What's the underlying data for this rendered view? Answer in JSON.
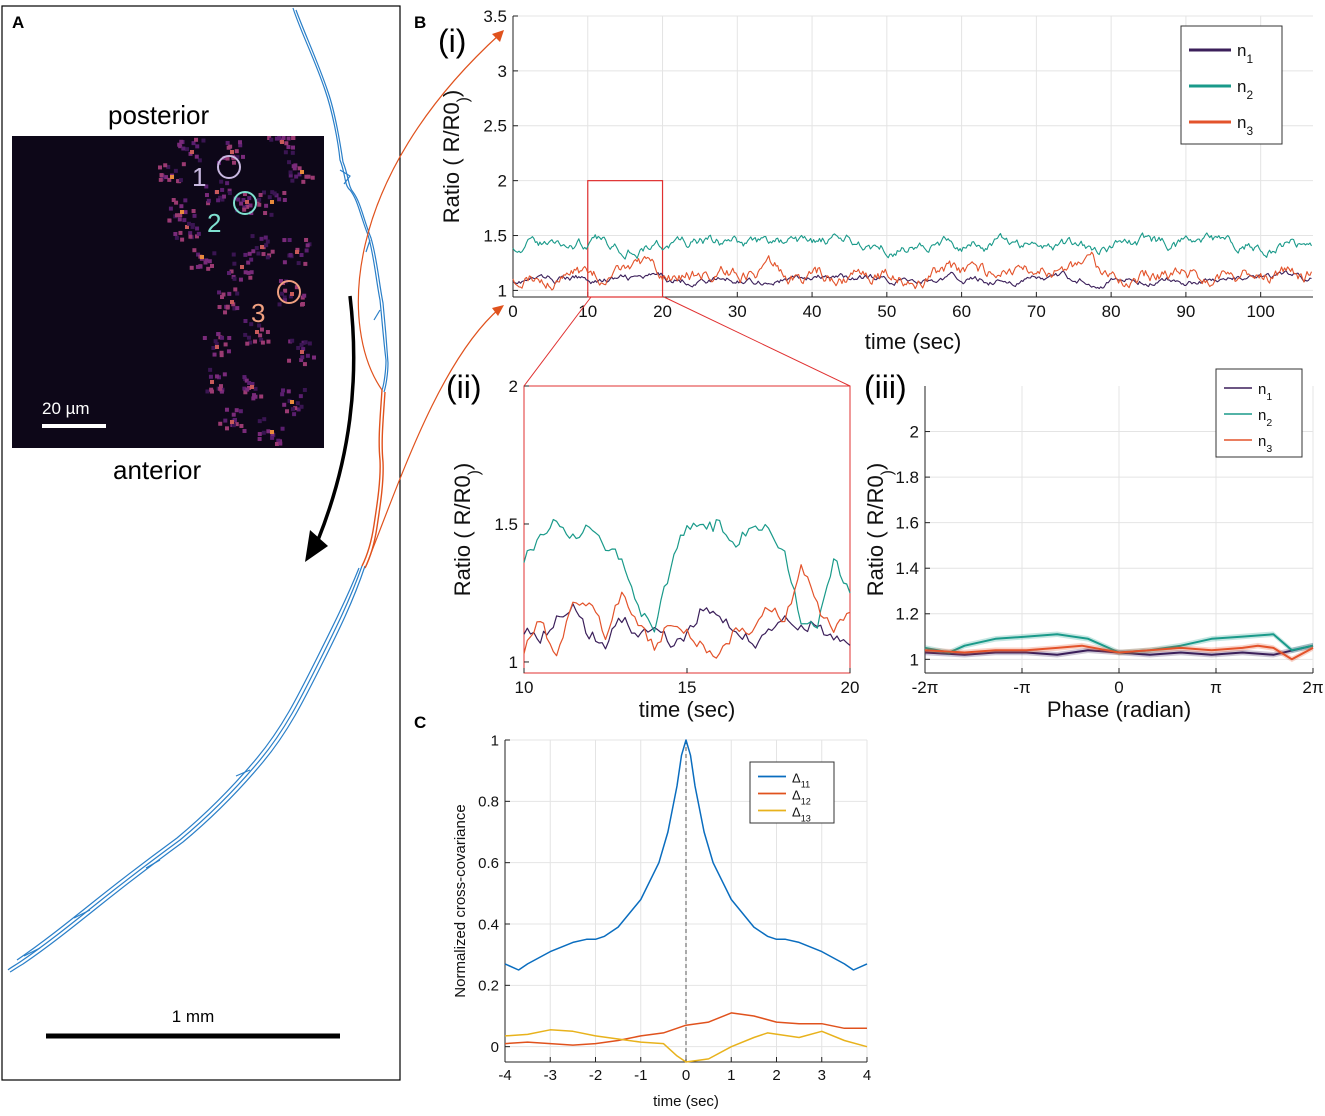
{
  "panelA": {
    "label": "A",
    "posterior": "posterior",
    "anterior": "anterior",
    "scalebar_inset": "20 µm",
    "scalebar_main": "1 mm",
    "neuron_labels": [
      "1",
      "2",
      "3"
    ],
    "colors": {
      "trace": "#1f77b4",
      "highlight": "#e0521d",
      "arrow": "#000000"
    }
  },
  "panelB": {
    "label": "B",
    "i": {
      "label": "(i)"
    },
    "ii": {
      "label": "(ii)"
    },
    "iii": {
      "label": "(iii)"
    }
  },
  "panelC": {
    "label": "C"
  },
  "chart_data": [
    {
      "id": "B-i",
      "type": "line",
      "xlabel": "time (sec)",
      "ylabel": "Ratio ( R/R0)",
      "xlim": [
        0,
        107
      ],
      "ylim": [
        0.94,
        3.5
      ],
      "xticks": [
        0,
        10,
        20,
        30,
        40,
        50,
        60,
        70,
        80,
        90,
        100
      ],
      "yticks": [
        1,
        1.5,
        2,
        2.5,
        3,
        3.5
      ],
      "grid": true,
      "legend": "top-right",
      "zoom_box": {
        "x": [
          10,
          20
        ],
        "y": [
          0.94,
          2
        ]
      },
      "series": [
        {
          "name": "n1",
          "color": "#3b1f5a",
          "mean": 1.1,
          "amp": 0.05
        },
        {
          "name": "n2",
          "color": "#1a9a8a",
          "mean": 1.42,
          "amp": 0.08
        },
        {
          "name": "n3",
          "color": "#e3532b",
          "mean": 1.15,
          "amp": 0.1
        }
      ]
    },
    {
      "id": "B-ii",
      "type": "line",
      "xlabel": "time (sec)",
      "ylabel": "Ratio ( R/R0)",
      "xlim": [
        10,
        20
      ],
      "ylim": [
        0.96,
        2
      ],
      "xticks": [
        10,
        15,
        20
      ],
      "yticks": [
        1,
        1.5,
        2
      ],
      "series": [
        {
          "name": "n1",
          "color": "#3b1f5a",
          "x": [
            10,
            10.5,
            11,
            11.5,
            12,
            12.5,
            13,
            13.5,
            14,
            14.5,
            15,
            15.5,
            16,
            16.5,
            17,
            17.5,
            18,
            18.5,
            19,
            19.5,
            20
          ],
          "y": [
            1.12,
            1.08,
            1.15,
            1.2,
            1.1,
            1.06,
            1.16,
            1.1,
            1.14,
            1.06,
            1.1,
            1.2,
            1.15,
            1.12,
            1.06,
            1.1,
            1.16,
            1.12,
            1.14,
            1.08,
            1.06
          ]
        },
        {
          "name": "n2",
          "color": "#1a9a8a",
          "x": [
            10,
            10.5,
            11,
            11.5,
            12,
            12.5,
            13,
            13.5,
            14,
            14.5,
            15,
            15.5,
            16,
            16.5,
            17,
            17.5,
            18,
            18.5,
            19,
            19.5,
            20
          ],
          "y": [
            1.38,
            1.45,
            1.52,
            1.45,
            1.5,
            1.42,
            1.38,
            1.2,
            1.12,
            1.35,
            1.5,
            1.48,
            1.5,
            1.42,
            1.5,
            1.48,
            1.4,
            1.15,
            1.12,
            1.38,
            1.25
          ]
        },
        {
          "name": "n3",
          "color": "#e3532b",
          "x": [
            10,
            10.5,
            11,
            11.5,
            12,
            12.5,
            13,
            13.5,
            14,
            14.5,
            15,
            15.5,
            16,
            16.5,
            17,
            17.5,
            18,
            18.5,
            19,
            19.5,
            20
          ],
          "y": [
            1.05,
            1.15,
            1.02,
            1.2,
            1.22,
            1.1,
            1.25,
            1.15,
            1.05,
            1.15,
            1.1,
            1.05,
            1.02,
            1.12,
            1.1,
            1.2,
            1.15,
            1.35,
            1.2,
            1.12,
            1.18
          ]
        }
      ]
    },
    {
      "id": "B-iii",
      "type": "line",
      "xlabel": "Phase (radian)",
      "ylabel": "Ratio ( R/R0)",
      "xlim": [
        -6.283,
        6.283
      ],
      "ylim": [
        0.94,
        2.2
      ],
      "xticks": [
        -6.283,
        -3.1416,
        0,
        3.1416,
        6.283
      ],
      "xticklabels": [
        "-2π",
        "-π",
        "0",
        "π",
        "2π"
      ],
      "yticks": [
        1,
        1.2,
        1.4,
        1.6,
        1.8,
        2
      ],
      "grid": true,
      "legend": "top-right",
      "series": [
        {
          "name": "n1",
          "color": "#3b1f5a",
          "x": [
            -6.283,
            -5,
            -4,
            -3,
            -2,
            -1,
            0,
            1,
            2,
            3,
            4,
            5,
            6.283
          ],
          "y": [
            1.03,
            1.02,
            1.03,
            1.03,
            1.02,
            1.04,
            1.03,
            1.02,
            1.03,
            1.02,
            1.03,
            1.02,
            1.06
          ]
        },
        {
          "name": "n2",
          "color": "#1a9a8a",
          "x": [
            -6.283,
            -5.5,
            -5,
            -4,
            -3,
            -2,
            -1,
            0,
            1,
            2,
            3,
            4,
            5,
            5.6,
            6.283
          ],
          "y": [
            1.05,
            1.03,
            1.06,
            1.09,
            1.1,
            1.11,
            1.09,
            1.03,
            1.04,
            1.06,
            1.09,
            1.1,
            1.11,
            1.04,
            1.06
          ]
        },
        {
          "name": "n3",
          "color": "#e3532b",
          "x": [
            -6.283,
            -5,
            -4,
            -3,
            -2,
            -1.2,
            0,
            1,
            2,
            3,
            4,
            4.5,
            5,
            5.6,
            6.283
          ],
          "y": [
            1.04,
            1.03,
            1.04,
            1.04,
            1.05,
            1.06,
            1.03,
            1.04,
            1.05,
            1.04,
            1.05,
            1.06,
            1.05,
            1.0,
            1.05
          ]
        }
      ]
    },
    {
      "id": "C",
      "type": "line",
      "xlabel": "time (sec)",
      "ylabel": "Normalized cross-covariance",
      "xlim": [
        -4,
        4
      ],
      "ylim": [
        -0.05,
        1
      ],
      "xticks": [
        -4,
        -3,
        -2,
        -1,
        0,
        1,
        2,
        3,
        4
      ],
      "yticks": [
        0,
        0.2,
        0.4,
        0.6,
        0.8,
        1
      ],
      "grid": true,
      "legend": "top-right",
      "vline_x": 0,
      "series": [
        {
          "name": "Δ11",
          "label_main": "Δ",
          "label_sub": "11",
          "color": "#0a6dbf",
          "x": [
            -4,
            -3.7,
            -3.5,
            -3,
            -2.5,
            -2.2,
            -2,
            -1.8,
            -1.5,
            -1,
            -0.6,
            -0.4,
            -0.2,
            -0.1,
            0,
            0.1,
            0.2,
            0.4,
            0.6,
            1,
            1.5,
            1.8,
            2,
            2.2,
            2.5,
            3,
            3.5,
            3.7,
            4
          ],
          "y": [
            0.27,
            0.25,
            0.27,
            0.31,
            0.34,
            0.35,
            0.35,
            0.36,
            0.39,
            0.48,
            0.6,
            0.7,
            0.85,
            0.95,
            1.0,
            0.95,
            0.85,
            0.7,
            0.6,
            0.48,
            0.39,
            0.36,
            0.35,
            0.35,
            0.34,
            0.31,
            0.27,
            0.25,
            0.27
          ]
        },
        {
          "name": "Δ12",
          "label_main": "Δ",
          "label_sub": "12",
          "color": "#e0521d",
          "x": [
            -4,
            -3.5,
            -3,
            -2.5,
            -2,
            -1.5,
            -1,
            -0.5,
            0,
            0.5,
            1,
            1.5,
            2,
            2.5,
            3,
            3.5,
            4
          ],
          "y": [
            0.01,
            0.015,
            0.01,
            0.005,
            0.01,
            0.02,
            0.035,
            0.045,
            0.07,
            0.08,
            0.11,
            0.1,
            0.08,
            0.075,
            0.075,
            0.06,
            0.06
          ]
        },
        {
          "name": "Δ13",
          "label_main": "Δ",
          "label_sub": "13",
          "color": "#e8b21c",
          "x": [
            -4,
            -3.5,
            -3,
            -2.5,
            -2,
            -1.5,
            -1,
            -0.5,
            -0.2,
            0,
            0.5,
            1,
            1.5,
            1.8,
            2.5,
            3,
            3.5,
            4
          ],
          "y": [
            0.035,
            0.04,
            0.055,
            0.05,
            0.035,
            0.025,
            0.015,
            0.01,
            -0.03,
            -0.05,
            -0.04,
            0.0,
            0.03,
            0.045,
            0.03,
            0.05,
            0.02,
            0.0
          ]
        }
      ]
    }
  ]
}
